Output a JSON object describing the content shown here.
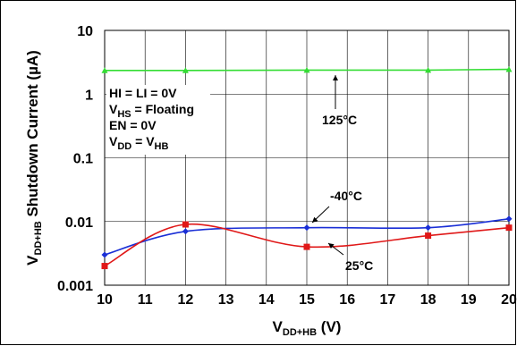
{
  "chart_data": {
    "type": "line",
    "xlabel": {
      "main": "V",
      "sub": "DD+HB",
      "tail": " (V)"
    },
    "ylabel": {
      "main": "V",
      "sub": "DD+HB",
      "tail": " Shutdown Current (µA)"
    },
    "x_ticks": [
      "10",
      "11",
      "12",
      "13",
      "14",
      "15",
      "16",
      "17",
      "18",
      "19",
      "20"
    ],
    "y_ticks": [
      "10",
      "1",
      "0.1",
      "0.01",
      "0.001"
    ],
    "xlim": [
      10,
      20
    ],
    "ylim": [
      0.001,
      10
    ],
    "y_scale": "log",
    "grid": true,
    "conditions": [
      {
        "main": "HI = LI = 0V",
        "sub": "",
        "tail": ""
      },
      {
        "main": "V",
        "sub": "HS",
        "tail": " = Floating"
      },
      {
        "main": "EN = 0V",
        "sub": "",
        "tail": ""
      },
      {
        "main": "V",
        "sub": "DD",
        "tail": " = V",
        "sub2": "HB"
      }
    ],
    "series": [
      {
        "name": "125°C",
        "color": "#33dd33",
        "marker": "triangle",
        "x": [
          10,
          12,
          15,
          18,
          20
        ],
        "y": [
          2.35,
          2.35,
          2.38,
          2.38,
          2.45
        ]
      },
      {
        "name": "-40°C",
        "color": "#1a2fd6",
        "marker": "diamond",
        "x": [
          10,
          12,
          15,
          18,
          20
        ],
        "y": [
          0.003,
          0.007,
          0.008,
          0.008,
          0.011
        ]
      },
      {
        "name": "25°C",
        "color": "#e01818",
        "marker": "square",
        "x": [
          10,
          12,
          15,
          18,
          20
        ],
        "y": [
          0.002,
          0.009,
          0.004,
          0.006,
          0.008
        ]
      }
    ]
  }
}
